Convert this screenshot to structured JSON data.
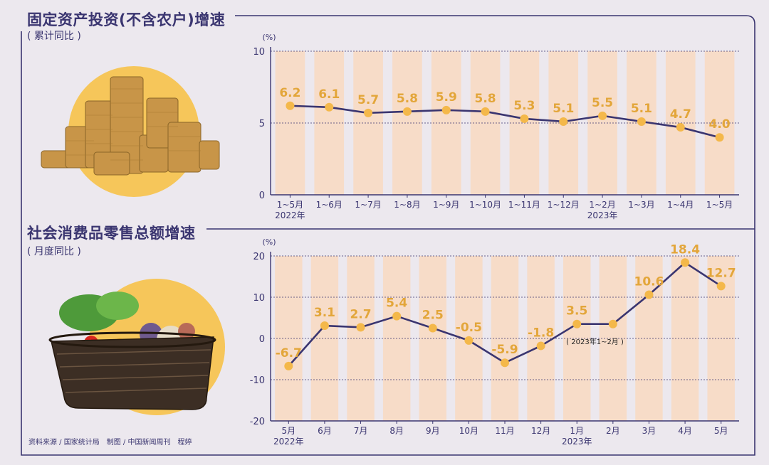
{
  "colors": {
    "ink": "#3a3570",
    "bar": "#f7dcc8",
    "marker": "#f4b84a",
    "value": "#e3a63a",
    "bg": "#ece8ee",
    "circle": "#f6c65a"
  },
  "icons": {
    "top_image": "gold-coins-stack",
    "bottom_image": "vegetable-basket"
  },
  "source_text": "资料来源 / 国家统计局　制图 / 中国新闻周刊　程婷",
  "chart_data": [
    {
      "type": "line",
      "title": "固定资产投资(不含农户)增速",
      "subtitle": "( 累计同比 )",
      "ylabel": "(%)",
      "ylim": [
        0,
        10
      ],
      "yticks": [
        0,
        5,
        10
      ],
      "grid": true,
      "categories": [
        "1~5月",
        "1~6月",
        "1~7月",
        "1~8月",
        "1~9月",
        "1~10月",
        "1~11月",
        "1~12月",
        "1~2月",
        "1~3月",
        "1~4月",
        "1~5月"
      ],
      "year_labels": [
        {
          "index": 0,
          "text": "2022年"
        },
        {
          "index": 8,
          "text": "2023年"
        }
      ],
      "series": [
        {
          "values": [
            6.2,
            6.1,
            5.7,
            5.8,
            5.9,
            5.8,
            5.3,
            5.1,
            5.5,
            5.1,
            4.7,
            4.0
          ],
          "labels": [
            "6.2",
            "6.1",
            "5.7",
            "5.8",
            "5.9",
            "5.8",
            "5.3",
            "5.1",
            "5.5",
            "5.1",
            "4.7",
            "4.0"
          ]
        }
      ]
    },
    {
      "type": "line",
      "title": "社会消费品零售总额增速",
      "subtitle": "( 月度同比 )",
      "ylabel": "(%)",
      "ylim": [
        -20,
        20
      ],
      "yticks": [
        -20,
        -10,
        0,
        10,
        20
      ],
      "grid": true,
      "categories": [
        "5月",
        "6月",
        "7月",
        "8月",
        "9月",
        "10月",
        "11月",
        "12月",
        "1月",
        "2月",
        "3月",
        "4月",
        "5月"
      ],
      "year_labels": [
        {
          "index": 0,
          "text": "2022年"
        },
        {
          "index": 8,
          "text": "2023年"
        }
      ],
      "series": [
        {
          "values": [
            -6.7,
            3.1,
            2.7,
            5.4,
            2.5,
            -0.5,
            -5.9,
            -1.8,
            3.5,
            3.5,
            10.6,
            18.4,
            12.7
          ],
          "labels": [
            "-6.7",
            "3.1",
            "2.7",
            "5.4",
            "2.5",
            "-0.5",
            "-5.9",
            "-1.8",
            "3.5",
            null,
            "10.6",
            "18.4",
            "12.7"
          ]
        }
      ],
      "annotation": {
        "index": 8.5,
        "text": "( 2023年1~2月 )"
      }
    }
  ]
}
